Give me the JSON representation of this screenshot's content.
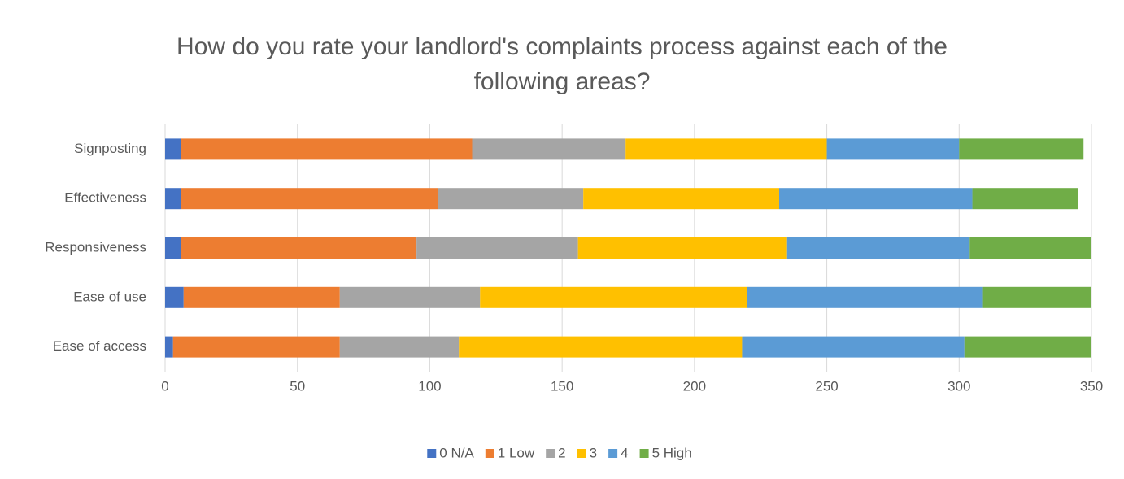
{
  "chart_data": {
    "type": "stacked-bar-horizontal",
    "title": "How do you rate your landlord's complaints process against each of the following areas?",
    "categories": [
      "Signposting",
      "Effectiveness",
      "Responsiveness",
      "Ease of use",
      "Ease of access"
    ],
    "series": [
      {
        "name": "0 N/A",
        "color": "#4472c4",
        "values": [
          6,
          6,
          6,
          7,
          3
        ]
      },
      {
        "name": "1 Low",
        "color": "#ed7d31",
        "values": [
          110,
          97,
          89,
          59,
          63
        ]
      },
      {
        "name": "2",
        "color": "#a5a5a5",
        "values": [
          58,
          55,
          61,
          53,
          45
        ]
      },
      {
        "name": "3",
        "color": "#ffc000",
        "values": [
          76,
          74,
          79,
          101,
          107
        ]
      },
      {
        "name": "4",
        "color": "#5b9bd5",
        "values": [
          50,
          73,
          69,
          89,
          84
        ]
      },
      {
        "name": "5 High",
        "color": "#70ad47",
        "values": [
          47,
          40,
          46,
          41,
          48
        ]
      }
    ],
    "xlim": [
      0,
      350
    ],
    "xticks": [
      0,
      50,
      100,
      150,
      200,
      250,
      300,
      350
    ],
    "grid": true,
    "legend": "bottom"
  }
}
